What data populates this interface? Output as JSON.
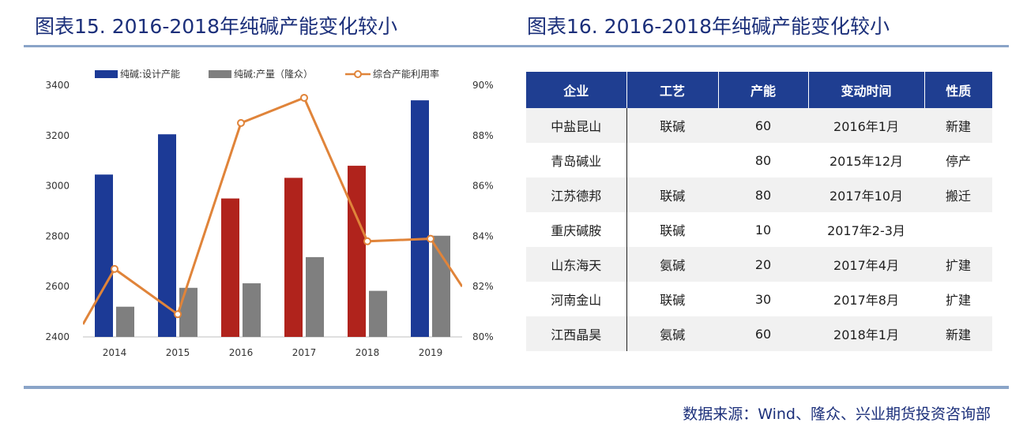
{
  "left_title": "图表15. 2016-2018年纯碱产能变化较小",
  "right_title": "图表16. 2016-2018年纯碱产能变化较小",
  "source": "数据来源：Wind、隆众、兴业期货投资咨询部",
  "colors": {
    "blue": "#1c3a96",
    "red": "#b0231c",
    "gray": "#7f7f7f",
    "line": "#e0843a",
    "title": "#1b2f7a",
    "header": "#1f3e91"
  },
  "chart_data": {
    "type": "bar+line",
    "categories": [
      "2014",
      "2015",
      "2016",
      "2017",
      "2018",
      "2019"
    ],
    "series": [
      {
        "name": "纯碱:设计产能",
        "kind": "bar",
        "axis": "left",
        "values": [
          3045,
          3205,
          2950,
          3032,
          3080,
          3340
        ],
        "colors": [
          "#1c3a96",
          "#1c3a96",
          "#b0231c",
          "#b0231c",
          "#b0231c",
          "#1c3a96"
        ]
      },
      {
        "name": "纯碱:产量（隆众）",
        "kind": "bar",
        "axis": "left",
        "values": [
          2520,
          2595,
          2613,
          2717,
          2583,
          2802
        ]
      },
      {
        "name": "综合产能利用率",
        "kind": "line",
        "axis": "right",
        "unit": "%",
        "x": [
          -0.5,
          0,
          1,
          2,
          3,
          4,
          5,
          5.5
        ],
        "values": [
          80.5,
          82.7,
          80.9,
          88.5,
          89.5,
          83.8,
          83.9,
          82.0
        ]
      }
    ],
    "ylim_left": [
      2400,
      3400
    ],
    "yticks_left": [
      2400,
      2600,
      2800,
      3000,
      3200,
      3400
    ],
    "ylim_right": [
      80,
      90
    ],
    "yticks_right": [
      "80%",
      "82%",
      "84%",
      "86%",
      "88%",
      "90%"
    ],
    "legend_position": "top"
  },
  "table": {
    "headers": [
      "企业",
      "工艺",
      "产能",
      "变动时间",
      "性质"
    ],
    "rows": [
      [
        "中盐昆山",
        "联碱",
        "60",
        "2016年1月",
        "新建"
      ],
      [
        "青岛碱业",
        "",
        "80",
        "2015年12月",
        "停产"
      ],
      [
        "江苏德邦",
        "联碱",
        "80",
        "2017年10月",
        "搬迁"
      ],
      [
        "重庆碱胺",
        "联碱",
        "10",
        "2017年2-3月",
        ""
      ],
      [
        "山东海天",
        "氨碱",
        "20",
        "2017年4月",
        "扩建"
      ],
      [
        "河南金山",
        "联碱",
        "30",
        "2017年8月",
        "扩建"
      ],
      [
        "江西晶昊",
        "氨碱",
        "60",
        "2018年1月",
        "新建"
      ]
    ]
  }
}
